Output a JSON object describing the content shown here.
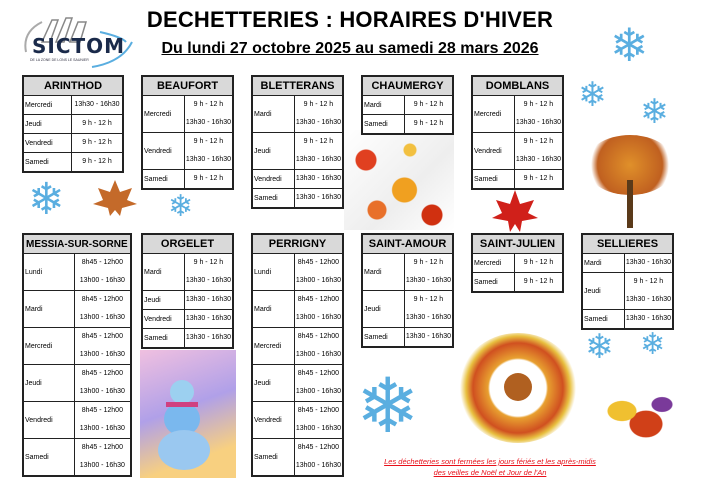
{
  "header": {
    "title": "DECHETTERIES : HORAIRES D'HIVER",
    "subtitle": "Du lundi 27 octobre 2025 au samedi 28 mars 2026",
    "logo": {
      "text": "SICTOM",
      "tagline": "DE LA ZONE DE LONS LE SAUNIER"
    }
  },
  "tables": [
    {
      "name": "ARINTHOD",
      "rows": [
        {
          "day": "Mercredi",
          "times": [
            "13h30 - 16h30"
          ]
        },
        {
          "day": "Jeudi",
          "times": [
            "9 h - 12 h"
          ]
        },
        {
          "day": "Vendredi",
          "times": [
            "9 h - 12 h"
          ]
        },
        {
          "day": "Samedi",
          "times": [
            "9 h - 12 h"
          ]
        }
      ]
    },
    {
      "name": "BEAUFORT",
      "rows": [
        {
          "day": "Mercredi",
          "times": [
            "9 h - 12 h",
            "13h30 - 16h30"
          ]
        },
        {
          "day": "Vendredi",
          "times": [
            "9 h - 12 h",
            "13h30 - 16h30"
          ]
        },
        {
          "day": "Samedi",
          "times": [
            "9 h - 12 h"
          ]
        }
      ]
    },
    {
      "name": "BLETTERANS",
      "rows": [
        {
          "day": "Mardi",
          "times": [
            "9 h - 12 h",
            "13h30 - 16h30"
          ]
        },
        {
          "day": "Jeudi",
          "times": [
            "9 h - 12 h",
            "13h30 - 16h30"
          ]
        },
        {
          "day": "Vendredi",
          "times": [
            "13h30 - 16h30"
          ]
        },
        {
          "day": "Samedi",
          "times": [
            "13h30 - 16h30"
          ]
        }
      ]
    },
    {
      "name": "CHAUMERGY",
      "rows": [
        {
          "day": "Mardi",
          "times": [
            "9 h - 12 h"
          ]
        },
        {
          "day": "Samedi",
          "times": [
            "9 h - 12 h"
          ]
        }
      ]
    },
    {
      "name": "DOMBLANS",
      "rows": [
        {
          "day": "Mercredi",
          "times": [
            "9 h - 12 h",
            "13h30 - 16h30"
          ]
        },
        {
          "day": "Vendredi",
          "times": [
            "9 h - 12 h",
            "13h30 - 16h30"
          ]
        },
        {
          "day": "Samedi",
          "times": [
            "9 h - 12 h"
          ]
        }
      ]
    },
    {
      "name": "MESSIA-SUR-SORNE",
      "rows": [
        {
          "day": "Lundi",
          "times": [
            "8h45 - 12h00",
            "13h00 - 16h30"
          ]
        },
        {
          "day": "Mardi",
          "times": [
            "8h45 - 12h00",
            "13h00 - 16h30"
          ]
        },
        {
          "day": "Mercredi",
          "times": [
            "8h45 - 12h00",
            "13h00 - 16h30"
          ]
        },
        {
          "day": "Jeudi",
          "times": [
            "8h45 - 12h00",
            "13h00 - 16h30"
          ]
        },
        {
          "day": "Vendredi",
          "times": [
            "8h45 - 12h00",
            "13h00 - 16h30"
          ]
        },
        {
          "day": "Samedi",
          "times": [
            "8h45 - 12h00",
            "13h00 - 16h30"
          ]
        }
      ]
    },
    {
      "name": "ORGELET",
      "rows": [
        {
          "day": "Mardi",
          "times": [
            "9 h - 12 h",
            "13h30 - 16h30"
          ]
        },
        {
          "day": "Jeudi",
          "times": [
            "13h30 - 16h30"
          ]
        },
        {
          "day": "Vendredi",
          "times": [
            "13h30 - 16h30"
          ]
        },
        {
          "day": "Samedi",
          "times": [
            "13h30 - 16h30"
          ]
        }
      ]
    },
    {
      "name": "PERRIGNY",
      "rows": [
        {
          "day": "Lundi",
          "times": [
            "8h45 - 12h00",
            "13h00 - 16h30"
          ]
        },
        {
          "day": "Mardi",
          "times": [
            "8h45 - 12h00",
            "13h00 - 16h30"
          ]
        },
        {
          "day": "Mercredi",
          "times": [
            "8h45 - 12h00",
            "13h00 - 16h30"
          ]
        },
        {
          "day": "Jeudi",
          "times": [
            "8h45 - 12h00",
            "13h00 - 16h30"
          ]
        },
        {
          "day": "Vendredi",
          "times": [
            "8h45 - 12h00",
            "13h00 - 16h30"
          ]
        },
        {
          "day": "Samedi",
          "times": [
            "8h45 - 12h00",
            "13h00 - 16h30"
          ]
        }
      ]
    },
    {
      "name": "SAINT-AMOUR",
      "rows": [
        {
          "day": "Mardi",
          "times": [
            "9 h - 12 h",
            "13h30 - 16h30"
          ]
        },
        {
          "day": "Jeudi",
          "times": [
            "9 h - 12 h",
            "13h30 - 16h30"
          ]
        },
        {
          "day": "Samedi",
          "times": [
            "13h30 - 16h30"
          ]
        }
      ]
    },
    {
      "name": "SAINT-JULIEN",
      "rows": [
        {
          "day": "Mercredi",
          "times": [
            "9 h - 12 h"
          ]
        },
        {
          "day": "Samedi",
          "times": [
            "9 h - 12 h"
          ]
        }
      ]
    },
    {
      "name": "SELLIERES",
      "rows": [
        {
          "day": "Mardi",
          "times": [
            "13h30 - 16h30"
          ]
        },
        {
          "day": "Jeudi",
          "times": [
            "9 h - 12 h",
            "13h30 - 16h30"
          ]
        },
        {
          "day": "Samedi",
          "times": [
            "13h30 - 16h30"
          ]
        }
      ]
    }
  ],
  "footer": {
    "line1": "Les déchetteries sont fermées les jours fériés et les après-midis",
    "line2": "des veilles de Noël et Jour de l'An"
  },
  "colors": {
    "header_bg": "#d9d9d9",
    "footer_text": "#e8101a",
    "snowflake": "#5aaee0"
  },
  "decorations": [
    "snowflake-icon",
    "maple-leaf-icon",
    "snowman-image",
    "autumn-tree-image",
    "squirrel-wreath-image"
  ]
}
